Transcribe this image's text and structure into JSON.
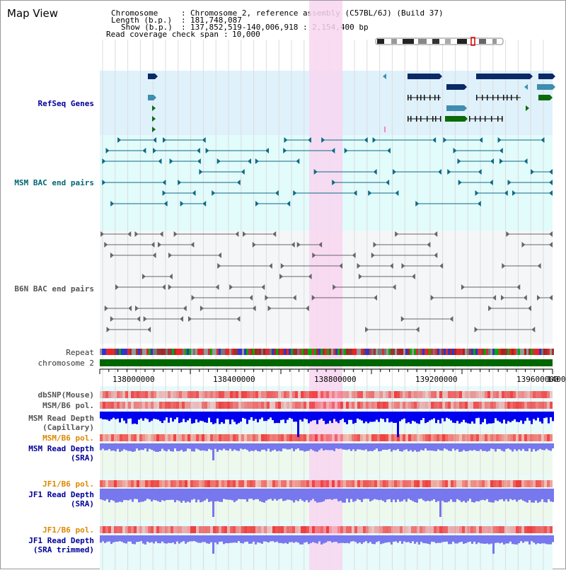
{
  "title": "Map View",
  "info": {
    "chromosome_key": "Chromosome",
    "chromosome_value": "Chromosome 2, reference assembly (C57BL/6J) (Build 37)",
    "length_key": "Length (b.p.)",
    "length_value": "181,748,087",
    "show_key": "Show (b.p.)",
    "show_value": "137,852,519-140,006,918 : 2,154,400 bp",
    "span_key": "Read coverage check span",
    "span_value": "10,000"
  },
  "tracks": {
    "refseq": "RefSeq Genes",
    "msm_bac": "MSM BAC end pairs",
    "b6n_bac": "B6N BAC end pairs",
    "repeat": "Repeat",
    "chromosome": "chromosome 2",
    "dbsnp": "dbSNP(Mouse)",
    "msm_b6_pol_1": "MSM/B6 pol.",
    "msm_read_depth_cap_1": "MSM Read Depth",
    "msm_read_depth_cap_2": "(Capillary)",
    "msm_b6_pol_2": "MSM/B6 pol.",
    "msm_read_depth_sra_1": "MSM Read Depth",
    "msm_read_depth_sra_2": "(SRA)",
    "jf1_b6_pol_1": "JF1/B6 pol.",
    "jf1_read_depth_sra_1": "JF1 Read Depth",
    "jf1_read_depth_sra_2": "(SRA)",
    "jf1_b6_pol_2": "JF1/B6 pol.",
    "jf1_read_depth_trim_1": "JF1 Read Depth",
    "jf1_read_depth_trim_2": "(SRA trimmed)"
  },
  "ruler": {
    "ticks": [
      "138000000",
      "138400000",
      "138800000",
      "139200000",
      "139600000",
      "1400"
    ]
  },
  "colors": {
    "refseq_bg": "#dff1fb",
    "msm_bg": "#e2fbfb",
    "b6n_bg": "#f4f6f8",
    "highlight": "#f8d6f0",
    "chromosome_bar": "#006600",
    "refseq_dark": "#0a2a66",
    "refseq_teal": "#3f8db0",
    "refseq_green": "#0b6b0b",
    "msm_pair": "#0e6a86",
    "b6n_pair": "#666666",
    "depth_blue": "#0000ee",
    "depth_light": "#7777ee",
    "pol_red": "#ee3333"
  }
}
